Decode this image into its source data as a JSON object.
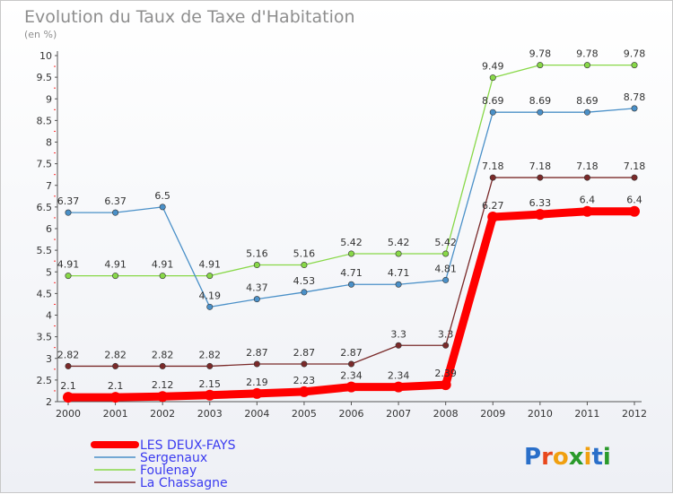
{
  "chart_data": {
    "type": "line",
    "title": "Evolution du Taux de Taxe d'Habitation",
    "unit_label": "(en %)",
    "xlabel": "",
    "ylabel": "",
    "x": [
      "2000",
      "2001",
      "2002",
      "2003",
      "2004",
      "2005",
      "2006",
      "2007",
      "2008",
      "2009",
      "2010",
      "2011",
      "2012"
    ],
    "ylim": [
      2,
      10
    ],
    "yticks": [
      "2",
      "2.5",
      "3",
      "3.5",
      "4",
      "4.5",
      "5",
      "5.5",
      "6",
      "6.5",
      "7",
      "7.5",
      "8",
      "8.5",
      "9",
      "9.5",
      "10"
    ],
    "grid": false,
    "legend_position": "bottom-left",
    "series": [
      {
        "name": "LES DEUX-FAYS",
        "color": "#ff0000",
        "values": [
          2.1,
          2.1,
          2.12,
          2.15,
          2.19,
          2.23,
          2.34,
          2.34,
          2.39,
          6.27,
          6.33,
          6.4,
          6.4
        ],
        "labels": [
          "2.1",
          "2.1",
          "2.12",
          "2.15",
          "2.19",
          "2.23",
          "2.34",
          "2.34",
          "2.39",
          "6.27",
          "6.33",
          "6.4",
          "6.4"
        ]
      },
      {
        "name": "Sergenaux",
        "color": "#4a90c8",
        "values": [
          6.37,
          6.37,
          6.5,
          4.19,
          4.37,
          4.53,
          4.71,
          4.71,
          4.81,
          8.69,
          8.69,
          8.69,
          8.78
        ],
        "labels": [
          "6.37",
          "6.37",
          "6.5",
          "4.19",
          "4.37",
          "4.53",
          "4.71",
          "4.71",
          "4.81",
          "8.69",
          "8.69",
          "8.69",
          "8.78"
        ]
      },
      {
        "name": "Foulenay",
        "color": "#88d848",
        "values": [
          4.91,
          4.91,
          4.91,
          4.91,
          5.16,
          5.16,
          5.42,
          5.42,
          5.42,
          9.49,
          9.78,
          9.78,
          9.78
        ],
        "labels": [
          "4.91",
          "4.91",
          "4.91",
          "4.91",
          "5.16",
          "5.16",
          "5.42",
          "5.42",
          "5.42",
          "9.49",
          "9.78",
          "9.78",
          "9.78"
        ]
      },
      {
        "name": "La Chassagne",
        "color": "#7a2a2a",
        "values": [
          2.82,
          2.82,
          2.82,
          2.82,
          2.87,
          2.87,
          2.87,
          3.3,
          3.3,
          7.18,
          7.18,
          7.18,
          7.18
        ],
        "labels": [
          "2.82",
          "2.82",
          "2.82",
          "2.82",
          "2.87",
          "2.87",
          "2.87",
          "3.3",
          "3.3",
          "7.18",
          "7.18",
          "7.18",
          "7.18"
        ]
      }
    ]
  },
  "logo": {
    "text": "Proxiti",
    "letter_colors": [
      "#2a6fc9",
      "#e8481c",
      "#f0a010",
      "#2a9a2a",
      "#f0a010",
      "#2a6fc9",
      "#2a9a2a"
    ]
  }
}
